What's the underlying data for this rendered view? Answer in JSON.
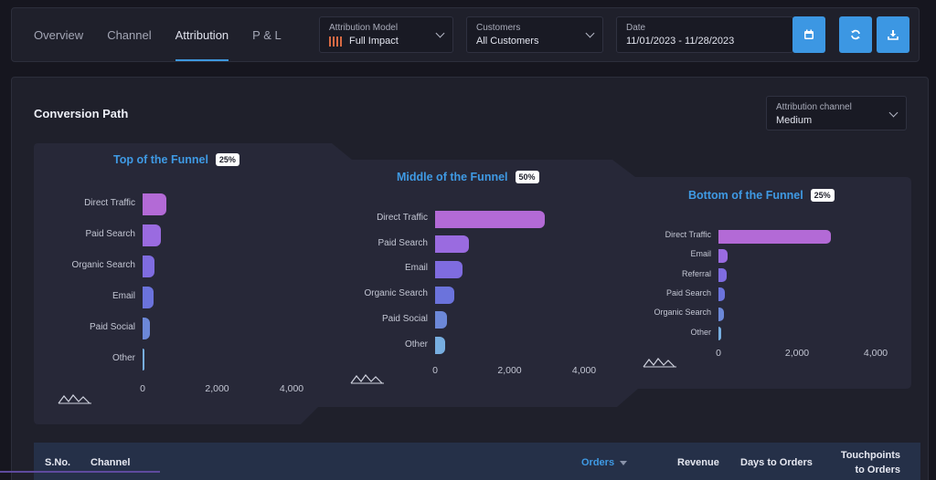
{
  "tabs": [
    {
      "label": "Overview"
    },
    {
      "label": "Channel"
    },
    {
      "label": "Attribution"
    },
    {
      "label": "P & L"
    }
  ],
  "filters": {
    "attribution_model": {
      "label": "Attribution Model",
      "value": "Full Impact"
    },
    "customers": {
      "label": "Customers",
      "value": "All Customers"
    },
    "date": {
      "label": "Date",
      "value": "11/01/2023 - 11/28/2023"
    }
  },
  "panel": {
    "title": "Conversion Path",
    "channel_select": {
      "label": "Attribution channel",
      "value": "Medium"
    }
  },
  "colors": {
    "accent": "#3c97e3",
    "panel": "#1f202b",
    "funnel": "#272838"
  },
  "chart_data": [
    {
      "type": "bar",
      "title": "Top of the Funnel",
      "badge": "25%",
      "categories": [
        "Direct Traffic",
        "Paid Search",
        "Organic Search",
        "Email",
        "Paid Social",
        "Other"
      ],
      "values": [
        650,
        500,
        330,
        290,
        190,
        50
      ],
      "ticks": [
        "0",
        "2,000",
        "4,000"
      ],
      "xlim": [
        0,
        4000
      ]
    },
    {
      "type": "bar",
      "title": "Middle of the Funnel",
      "badge": "50%",
      "categories": [
        "Direct Traffic",
        "Paid Search",
        "Email",
        "Organic Search",
        "Paid Social",
        "Other"
      ],
      "values": [
        2950,
        920,
        740,
        520,
        320,
        270
      ],
      "ticks": [
        "0",
        "2,000",
        "4,000"
      ],
      "xlim": [
        0,
        4000
      ]
    },
    {
      "type": "bar",
      "title": "Bottom of the Funnel",
      "badge": "25%",
      "categories": [
        "Direct Traffic",
        "Email",
        "Referral",
        "Paid Search",
        "Organic Search",
        "Other"
      ],
      "values": [
        2850,
        230,
        200,
        170,
        150,
        80
      ],
      "ticks": [
        "0",
        "2,000",
        "4,000"
      ],
      "xlim": [
        0,
        4000
      ]
    }
  ],
  "table": {
    "columns": [
      {
        "label": "S.No."
      },
      {
        "label": "Channel"
      },
      {
        "label": "Orders"
      },
      {
        "label": "Revenue"
      },
      {
        "label": "Days to Orders"
      },
      {
        "label": "Touchpoints to Orders"
      }
    ]
  }
}
